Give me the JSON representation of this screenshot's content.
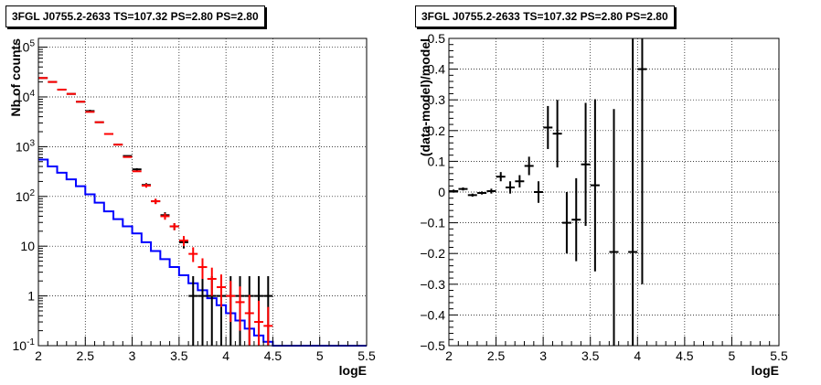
{
  "chart_data": [
    {
      "type": "line",
      "title": "3FGL J0755.2-2633 TS=107.32 PS=2.80 PS=2.80",
      "xlabel": "logE",
      "ylabel": "Nb of counts",
      "xlim": [
        2,
        5.5
      ],
      "ylim": [
        0.1,
        150000
      ],
      "yscale": "log",
      "grid": true,
      "x_ticks": [
        "2",
        "2.5",
        "3",
        "3.5",
        "4",
        "4.5",
        "5",
        "5.5"
      ],
      "y_ticks": [
        "10^{-1}",
        "1",
        "10",
        "10^{2}",
        "10^{3}",
        "10^{4}",
        "10^{5}"
      ],
      "bin_edges": [
        2.0,
        2.1,
        2.2,
        2.3,
        2.4,
        2.5,
        2.6,
        2.7,
        2.8,
        2.9,
        3.0,
        3.1,
        3.2,
        3.3,
        3.4,
        3.5,
        3.6,
        3.7,
        3.8,
        3.9,
        4.0,
        4.1,
        4.2,
        4.3,
        4.4,
        4.5,
        4.6,
        4.7,
        4.8,
        4.9,
        5.0,
        5.1,
        5.2,
        5.3,
        5.4,
        5.5
      ],
      "series": [
        {
          "color": "#0000ff",
          "style": "step",
          "values": [
            550,
            400,
            300,
            220,
            160,
            110,
            75,
            50,
            35,
            25,
            18,
            12,
            8,
            5.5,
            3.8,
            2.6,
            1.8,
            1.3,
            0.9,
            0.65,
            0.45,
            0.32,
            0.22,
            0.16,
            0.12,
            0.1,
            0.1,
            0.1,
            0.1,
            0.1,
            0.1,
            0.1,
            0.1,
            0.1,
            0.1
          ]
        },
        {
          "color": "#ff0000",
          "style": "errorbar",
          "x": [
            2.05,
            2.15,
            2.25,
            2.35,
            2.45,
            2.55,
            2.65,
            2.75,
            2.85,
            2.95,
            3.05,
            3.15,
            3.25,
            3.35,
            3.45,
            3.55,
            3.65,
            3.75,
            3.85,
            3.95,
            4.05,
            4.15,
            4.25,
            4.35,
            4.45
          ],
          "y": [
            24000,
            20000,
            14000,
            11500,
            8000,
            5000,
            3100,
            1800,
            1100,
            620,
            320,
            165,
            80,
            40,
            25,
            13,
            7,
            3.8,
            2.2,
            1.5,
            1.0,
            0.75,
            0.45,
            0.3,
            0.25
          ],
          "yerr_low": [
            0,
            0,
            0,
            0,
            0,
            0,
            0,
            0,
            0,
            0,
            0,
            15,
            10,
            6,
            4,
            3,
            2.2,
            1.6,
            1.2,
            0.9,
            0.7,
            0.55,
            0.35,
            0.2,
            0.15
          ],
          "yerr_high": [
            0,
            0,
            0,
            0,
            0,
            0,
            0,
            0,
            0,
            0,
            0,
            15,
            10,
            6,
            4,
            3,
            2.5,
            1.9,
            1.5,
            1.2,
            1.0,
            0.8,
            0.6,
            0.5,
            0.35
          ]
        },
        {
          "color": "#000000",
          "style": "errorbar",
          "x": [
            2.05,
            2.15,
            2.25,
            2.35,
            2.45,
            2.55,
            2.65,
            2.75,
            2.85,
            2.95,
            3.05,
            3.15,
            3.25,
            3.35,
            3.45,
            3.55,
            3.65,
            3.75,
            3.85,
            3.95,
            4.05,
            4.15,
            4.25,
            4.35,
            4.45
          ],
          "y": [
            24000,
            20000,
            14000,
            11500,
            8000,
            5200,
            3100,
            1800,
            1100,
            650,
            350,
            170,
            80,
            42,
            25,
            12,
            1,
            1,
            1,
            1,
            1,
            1,
            1,
            1,
            1
          ],
          "yerr_low": [
            0,
            0,
            0,
            0,
            0,
            300,
            0,
            0,
            0,
            0,
            20,
            15,
            9,
            6,
            4,
            3,
            0.9,
            0.9,
            0.9,
            0.9,
            0.9,
            0.9,
            0.9,
            0.9,
            0.9
          ],
          "yerr_high": [
            0,
            0,
            0,
            0,
            0,
            300,
            0,
            0,
            0,
            0,
            20,
            15,
            9,
            6,
            4,
            3,
            1.5,
            1.5,
            1.5,
            1.5,
            1.5,
            1.5,
            1.5,
            1.5,
            1.5
          ]
        }
      ]
    },
    {
      "type": "scatter",
      "title": "3FGL J0755.2-2633 TS=107.32 PS=2.80 PS=2.80",
      "xlabel": "logE",
      "ylabel": "(data-model)/model",
      "xlim": [
        2,
        5.5
      ],
      "ylim": [
        -0.5,
        0.5
      ],
      "grid": true,
      "x_ticks": [
        "2",
        "2.5",
        "3",
        "3.5",
        "4",
        "4.5",
        "5",
        "5.5"
      ],
      "y_ticks": [
        "−0.5",
        "−0.4",
        "−0.3",
        "−0.2",
        "−0.1",
        "0",
        "0.1",
        "0.2",
        "0.3",
        "0.4",
        "0.5"
      ],
      "series": [
        {
          "color": "#000000",
          "x": [
            2.05,
            2.15,
            2.25,
            2.35,
            2.45,
            2.55,
            2.65,
            2.75,
            2.85,
            2.95,
            3.05,
            3.15,
            3.25,
            3.35,
            3.45,
            3.55,
            3.75,
            3.95,
            4.05
          ],
          "y": [
            0.003,
            0.01,
            -0.01,
            -0.003,
            0.003,
            0.05,
            0.015,
            0.035,
            0.085,
            0.0,
            0.21,
            0.19,
            -0.1,
            -0.09,
            0.09,
            0.022,
            -0.195,
            -0.195,
            0.4
          ],
          "yerr": [
            0.005,
            0.005,
            0.005,
            0.005,
            0.008,
            0.015,
            0.02,
            0.02,
            0.03,
            0.035,
            0.07,
            0.11,
            0.1,
            0.135,
            0.2,
            0.28,
            0.465,
            0.7,
            0.7
          ]
        }
      ]
    }
  ]
}
